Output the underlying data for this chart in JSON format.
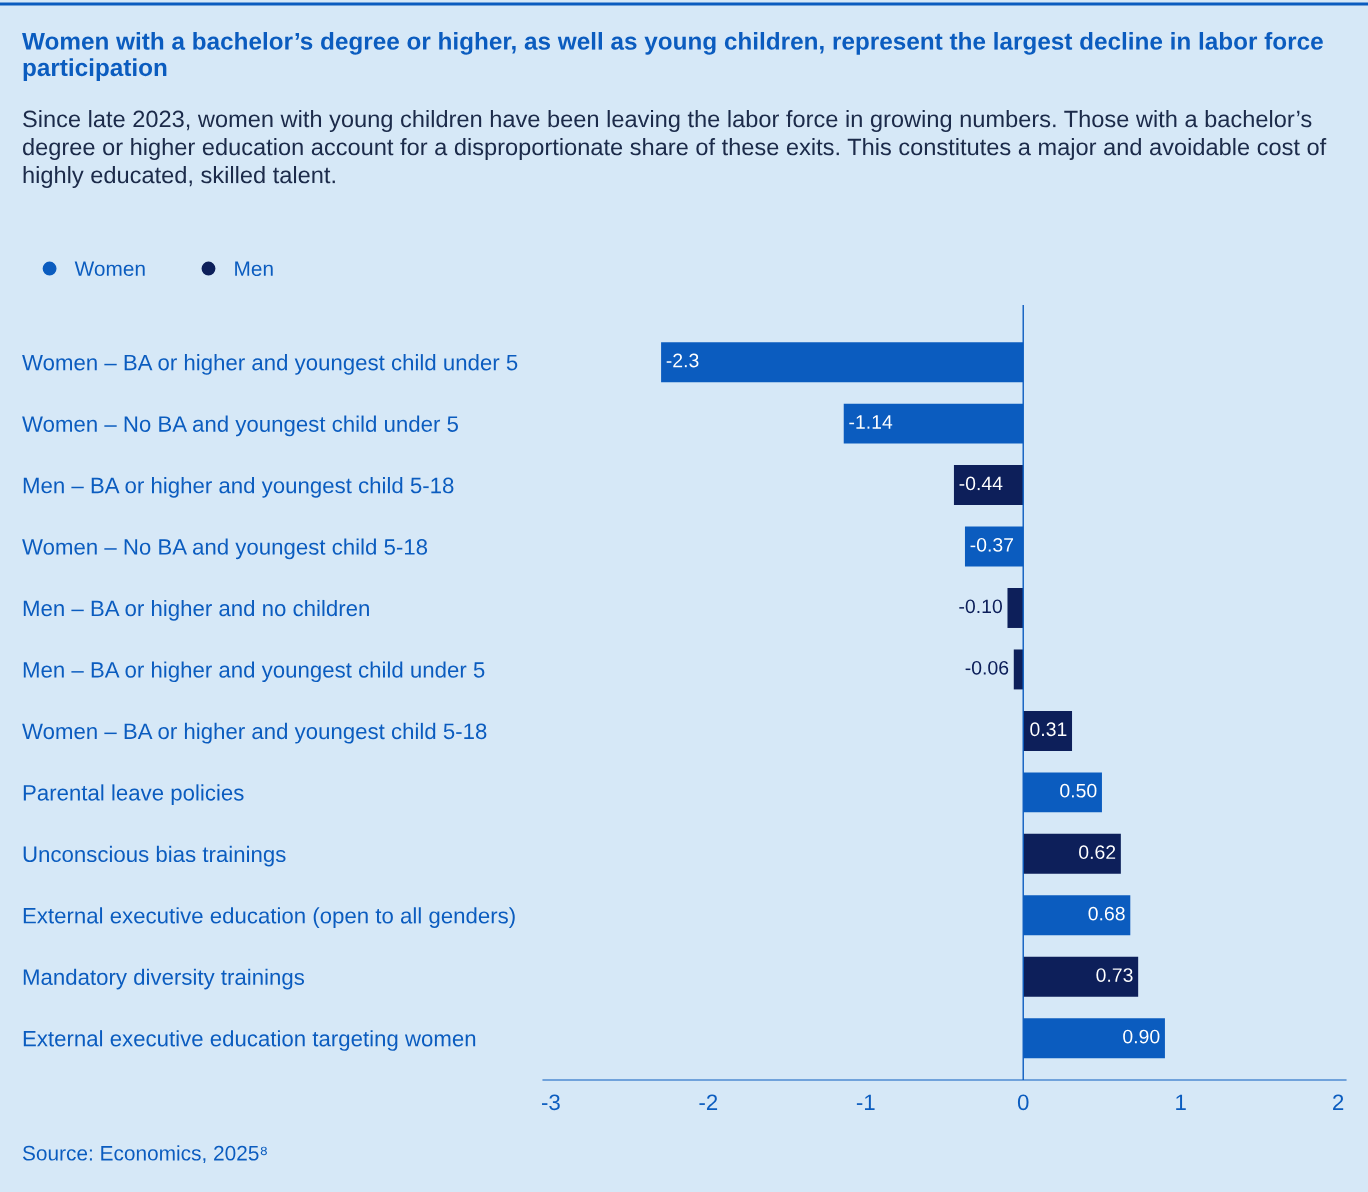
{
  "chart_data": {
    "type": "bar",
    "orientation": "horizontal",
    "title": "Women with a bachelor’s degree or higher, as well as young children, represent the largest decline in labor force participation",
    "subtitle": "Since late 2023, women with young children have been leaving the labor force in growing numbers. Those with a bachelor’s degree or higher education account for a disproportionate share of these exits. This constitutes a major and avoidable cost of highly educated, skilled talent.",
    "categories": [
      "Women – BA or higher and youngest child under 5",
      "Women – No BA and youngest child under 5",
      "Men – BA or higher and youngest child 5-18",
      "Women – No BA and youngest child 5-18",
      "Men – BA or higher and no children",
      "Men – BA or higher and youngest child under 5",
      "Women – BA or higher and youngest child 5-18",
      "Parental leave policies",
      "Unconscious bias trainings",
      "External executive education (open to all genders)",
      "Mandatory diversity trainings",
      "External executive education targeting women"
    ],
    "series": [
      {
        "name": "Women",
        "color": "#0b5cbf",
        "values": [
          -2.3,
          -1.14,
          null,
          -0.37,
          null,
          null,
          null,
          0.5,
          null,
          0.68,
          null,
          0.9
        ],
        "value_labels": [
          "-2.3",
          "-1.14",
          null,
          "-0.37",
          null,
          null,
          null,
          "0.50",
          null,
          "0.68",
          null,
          "0.90"
        ]
      },
      {
        "name": "Men",
        "color": "#0d1f5a",
        "values": [
          null,
          null,
          -0.44,
          null,
          -0.1,
          -0.06,
          0.31,
          null,
          0.62,
          null,
          0.73,
          null
        ],
        "value_labels": [
          null,
          null,
          "-0.44",
          null,
          "-0.10",
          "-0.06",
          "0.31",
          null,
          "0.62",
          null,
          "0.73",
          null
        ]
      }
    ],
    "xlim": [
      -3.05,
      2.05
    ],
    "xticks": [
      -3,
      -2,
      -1,
      0,
      1,
      2
    ],
    "ref_lines": [
      {
        "axis": "x",
        "value": 0
      }
    ],
    "grid": false,
    "legend": "top left",
    "annotations": [
      "Source: Economics, 2025⁸"
    ]
  }
}
